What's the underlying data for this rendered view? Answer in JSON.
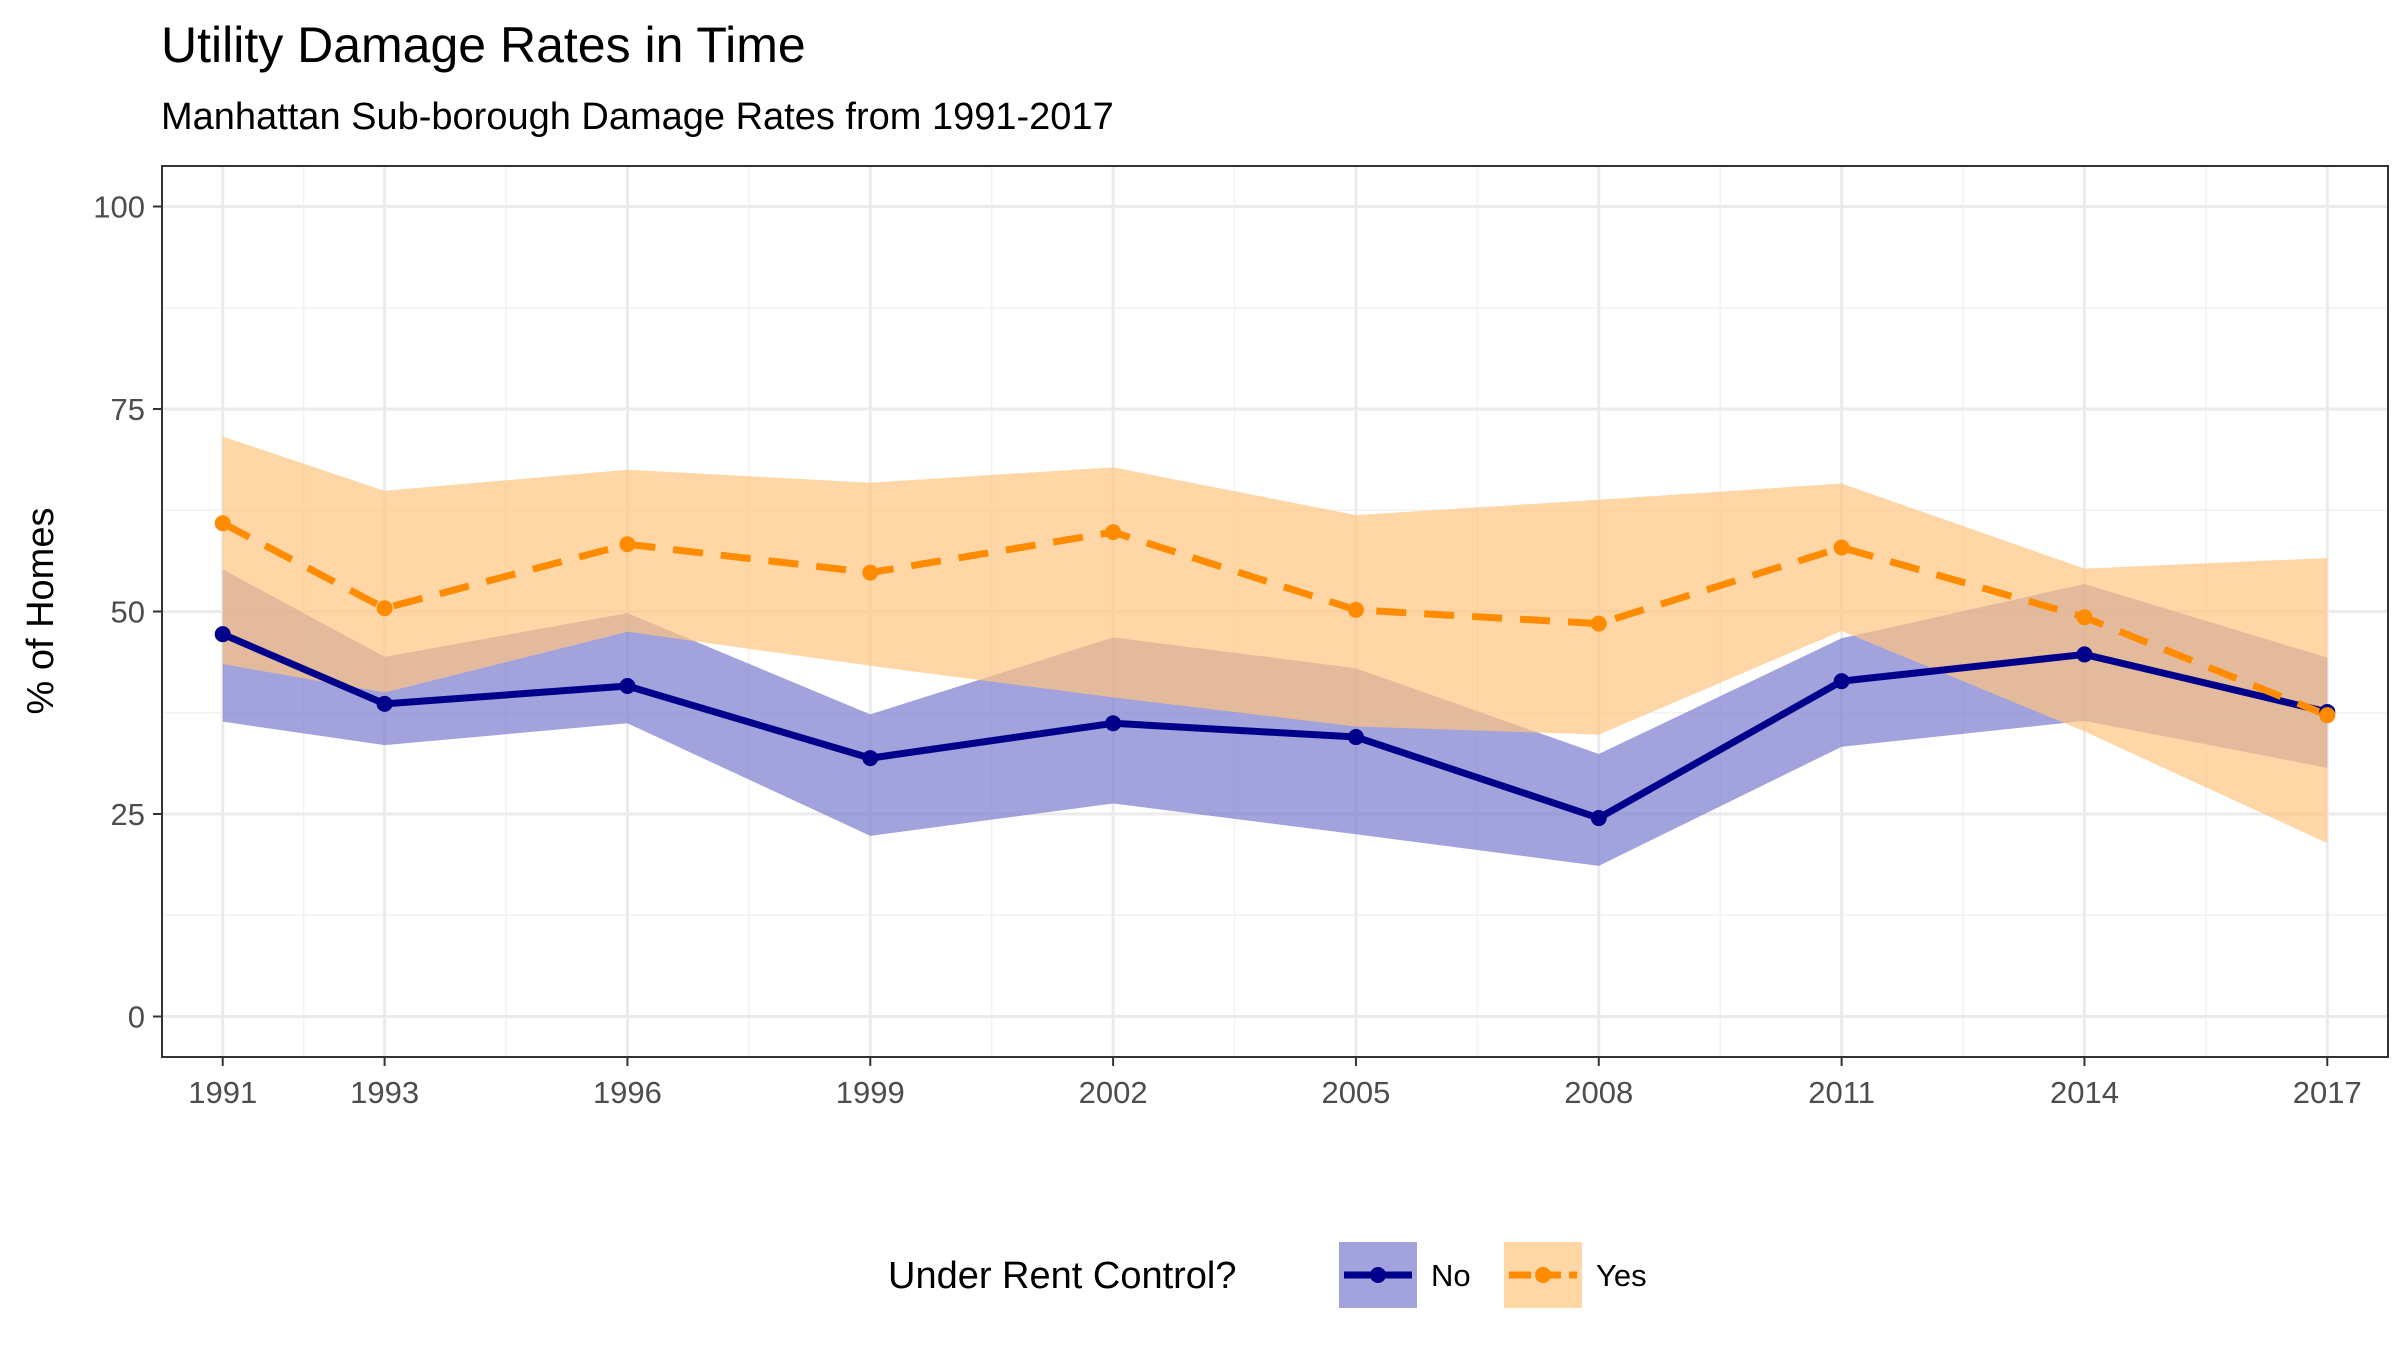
{
  "chart_data": {
    "type": "line",
    "title": "Utility Damage Rates in Time",
    "subtitle": "Manhattan Sub-borough Damage Rates from 1991-2017",
    "xlabel": "",
    "ylabel": "% of Homes",
    "x": [
      1991,
      1993,
      1996,
      1999,
      2002,
      2005,
      2008,
      2011,
      2014,
      2017
    ],
    "x_tick_labels": [
      "1991",
      "1993",
      "1996",
      "1999",
      "2002",
      "2005",
      "2008",
      "2011",
      "2014",
      "2017"
    ],
    "xlim": [
      1990.25,
      2017.75
    ],
    "ylim": [
      -5,
      105
    ],
    "y_ticks": [
      0,
      25,
      50,
      75,
      100
    ],
    "y_tick_labels": [
      "0",
      "25",
      "50",
      "75",
      "100"
    ],
    "grid": true,
    "legend": {
      "title": "Under Rent Control?",
      "position": "bottom"
    },
    "series": [
      {
        "name": "No",
        "color": "#00008B",
        "ribbon_color": "#7B7BCF",
        "line_style": "solid",
        "values": [
          47.2,
          38.6,
          40.8,
          31.9,
          36.2,
          34.5,
          24.5,
          41.4,
          44.7,
          37.6
        ],
        "lower": [
          36.4,
          33.5,
          36.2,
          22.3,
          26.3,
          22.5,
          18.6,
          33.3,
          36.5,
          30.7
        ],
        "upper": [
          55.2,
          44.4,
          49.8,
          37.3,
          46.8,
          43.0,
          32.4,
          46.7,
          53.4,
          44.3
        ]
      },
      {
        "name": "Yes",
        "color": "#FF8C00",
        "ribbon_color": "#FFC580",
        "line_style": "dashed",
        "values": [
          60.9,
          50.4,
          58.3,
          54.8,
          59.8,
          50.2,
          48.5,
          57.9,
          49.3,
          37.2
        ],
        "lower": [
          43.5,
          40.0,
          47.5,
          43.3,
          39.4,
          35.8,
          34.8,
          47.6,
          35.2,
          21.4
        ],
        "upper": [
          71.6,
          64.9,
          67.5,
          65.9,
          67.8,
          61.9,
          63.8,
          65.8,
          55.3,
          56.6
        ]
      }
    ]
  }
}
